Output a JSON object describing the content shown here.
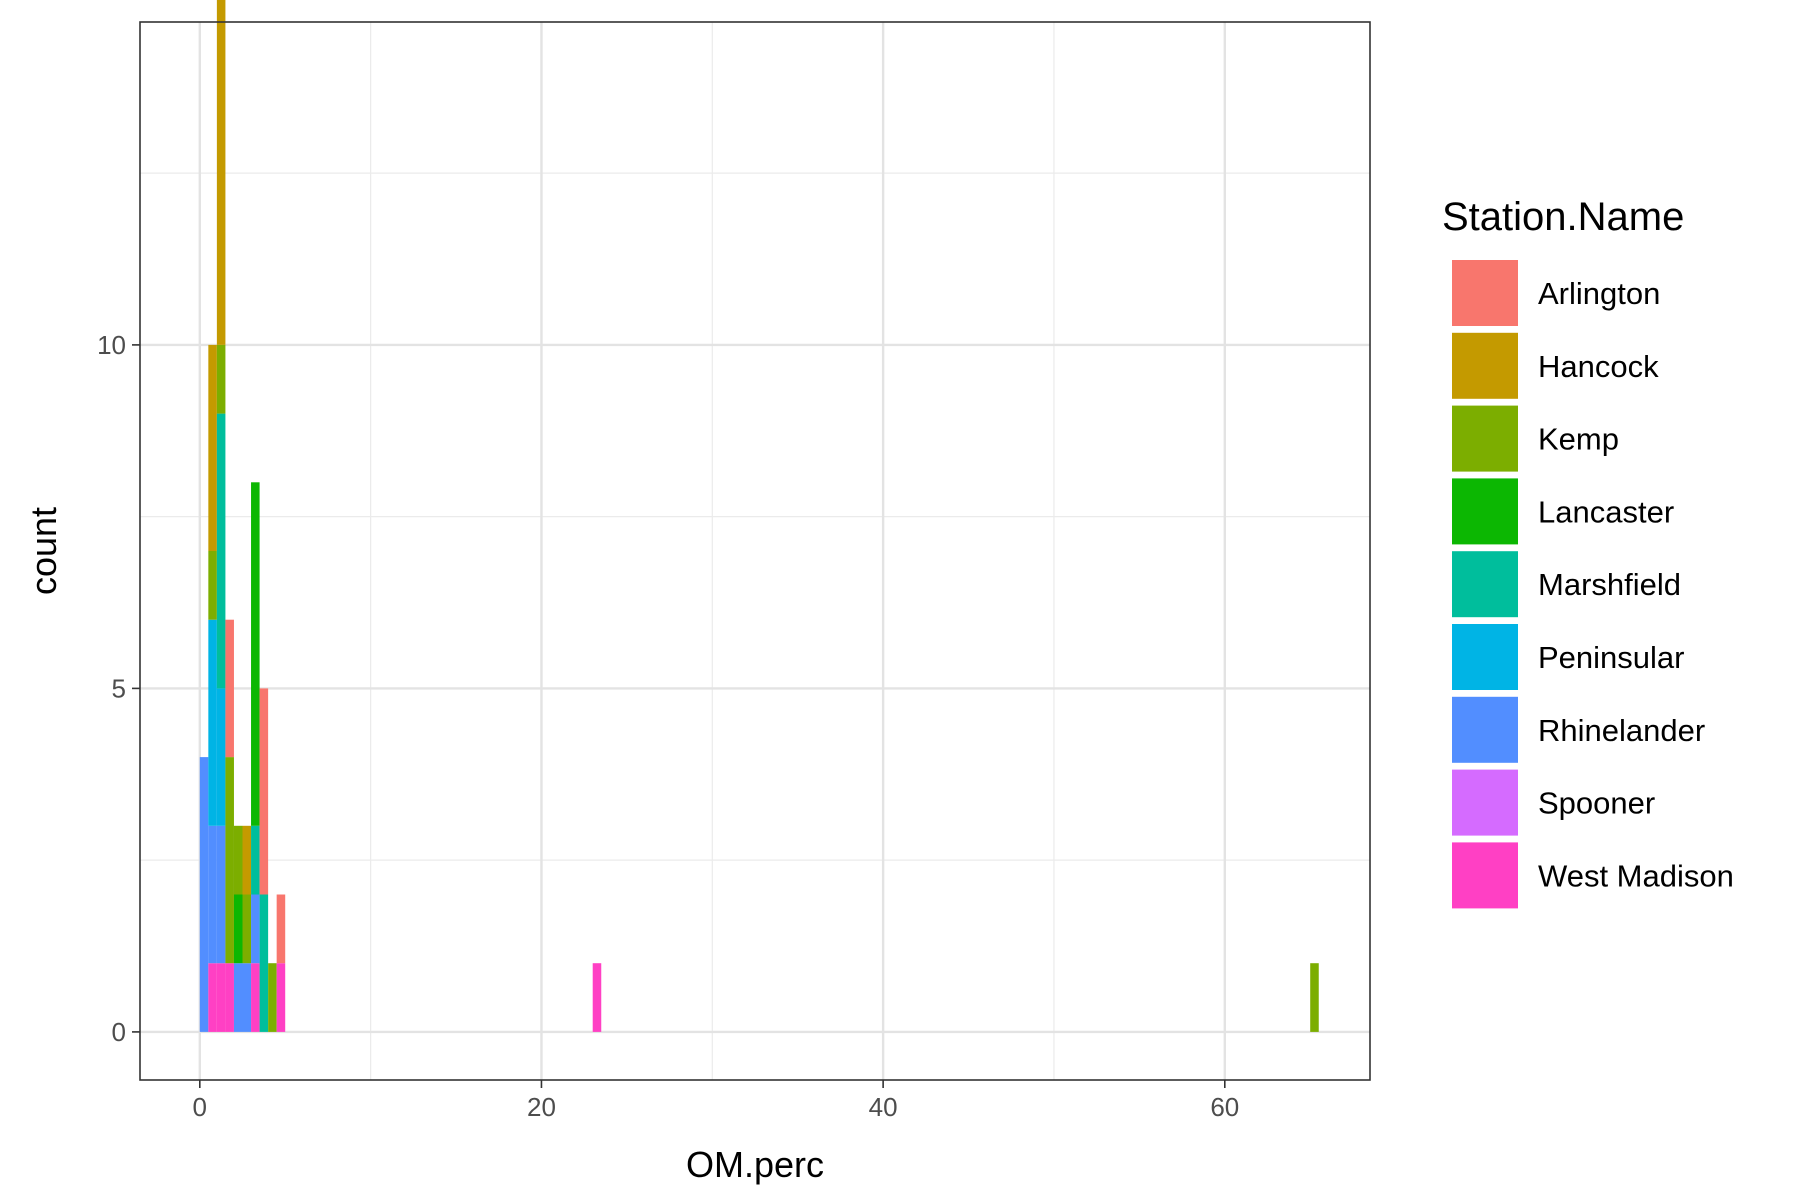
{
  "chart_data": {
    "type": "bar",
    "subtype": "stacked-histogram",
    "xlabel": "OM.perc",
    "ylabel": "count",
    "xlim": [
      -3.5,
      68.5
    ],
    "ylim": [
      -0.7,
      14.7
    ],
    "x_ticks": [
      0,
      20,
      40,
      60
    ],
    "y_ticks": [
      0,
      5,
      10
    ],
    "grid": true,
    "legend_position": "right",
    "legend_title": "Station.Name",
    "bin_width": 0.5,
    "bins": [
      0.25,
      0.75,
      1.25,
      1.75,
      2.25,
      2.75,
      3.25,
      3.75,
      4.25,
      4.75,
      23.25,
      65.25
    ],
    "series": [
      {
        "name": "Arlington",
        "color": "#F8766D",
        "values": [
          0,
          0,
          0,
          2,
          0,
          0,
          0,
          3,
          0,
          1,
          0,
          0
        ]
      },
      {
        "name": "Hancock",
        "color": "#C49A00",
        "values": [
          0,
          3,
          7,
          0,
          0,
          1,
          0,
          0,
          0,
          0,
          0,
          0
        ]
      },
      {
        "name": "Kemp",
        "color": "#7CAE00",
        "values": [
          0,
          1,
          1,
          3,
          1,
          1,
          0,
          0,
          1,
          0,
          0,
          1
        ]
      },
      {
        "name": "Lancaster",
        "color": "#0CB702",
        "values": [
          0,
          0,
          0,
          0,
          1,
          0,
          5,
          0,
          0,
          0,
          0,
          0
        ]
      },
      {
        "name": "Marshfield",
        "color": "#00BE9C",
        "values": [
          0,
          0,
          4,
          0,
          0,
          0,
          1,
          2,
          0,
          0,
          0,
          0
        ]
      },
      {
        "name": "Peninsular",
        "color": "#00B4E5",
        "values": [
          0,
          3,
          2,
          0,
          0,
          0,
          0,
          0,
          0,
          0,
          0,
          0
        ]
      },
      {
        "name": "Rhinelander",
        "color": "#528EFF",
        "values": [
          4,
          2,
          2,
          0,
          1,
          1,
          1,
          0,
          0,
          0,
          0,
          0
        ]
      },
      {
        "name": "Spooner",
        "color": "#D56BFF",
        "values": [
          0,
          0,
          0,
          0,
          0,
          0,
          0,
          0,
          0,
          0,
          0,
          0
        ]
      },
      {
        "name": "West Madison",
        "color": "#FF40C4",
        "values": [
          0,
          1,
          1,
          1,
          0,
          0,
          1,
          0,
          0,
          1,
          1,
          0
        ]
      }
    ]
  }
}
